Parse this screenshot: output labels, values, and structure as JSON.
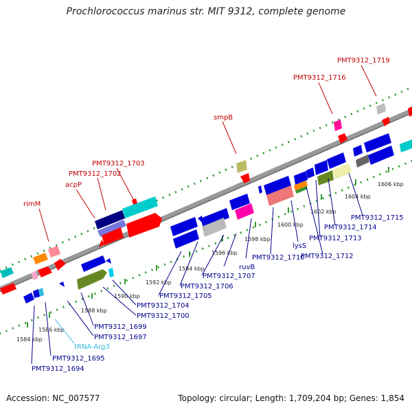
{
  "title": "Prochlorococcus marinus str. MIT 9312, complete genome",
  "accession": "Accession: NC_007577",
  "summary": "Topology: circular; Length: 1,709,204 bp; Genes: 1,854",
  "colors": {
    "plus_label": "#c00000",
    "minus_label": "#00008b",
    "trna_label": "#33bbdd",
    "backbone": "#999999",
    "tick": "#339933",
    "tick_label": "#222222"
  },
  "tick_labels": [
    "1584 kbp",
    "1586 kbp",
    "1588 kbp",
    "1590 kbp",
    "1592 kbp",
    "1594 kbp",
    "1596 kbp",
    "1598 kbp",
    "1600 kbp",
    "1602 kbp",
    "1604 kbp",
    "1606 kbp"
  ],
  "plus_labels": [
    "rimM",
    "acpP",
    "PMT9312_1702",
    "PMT9312_1703",
    "smpB",
    "PMT9312_1716",
    "PMT9312_1719"
  ],
  "minus_labels": [
    "PMT9312_1694",
    "PMT9312_1695",
    "tRNA-Arg3",
    "PMT9312_1697",
    "PMT9312_1699",
    "PMT9312_1700",
    "PMT9312_1704",
    "PMT9312_1705",
    "PMT9312_1706",
    "PMT9312_1707",
    "ruvB",
    "PMT9312_1710",
    "lysS",
    "PMT9312_1712",
    "PMT9312_1713",
    "PMT9312_1714",
    "PMT9312_1715"
  ]
}
